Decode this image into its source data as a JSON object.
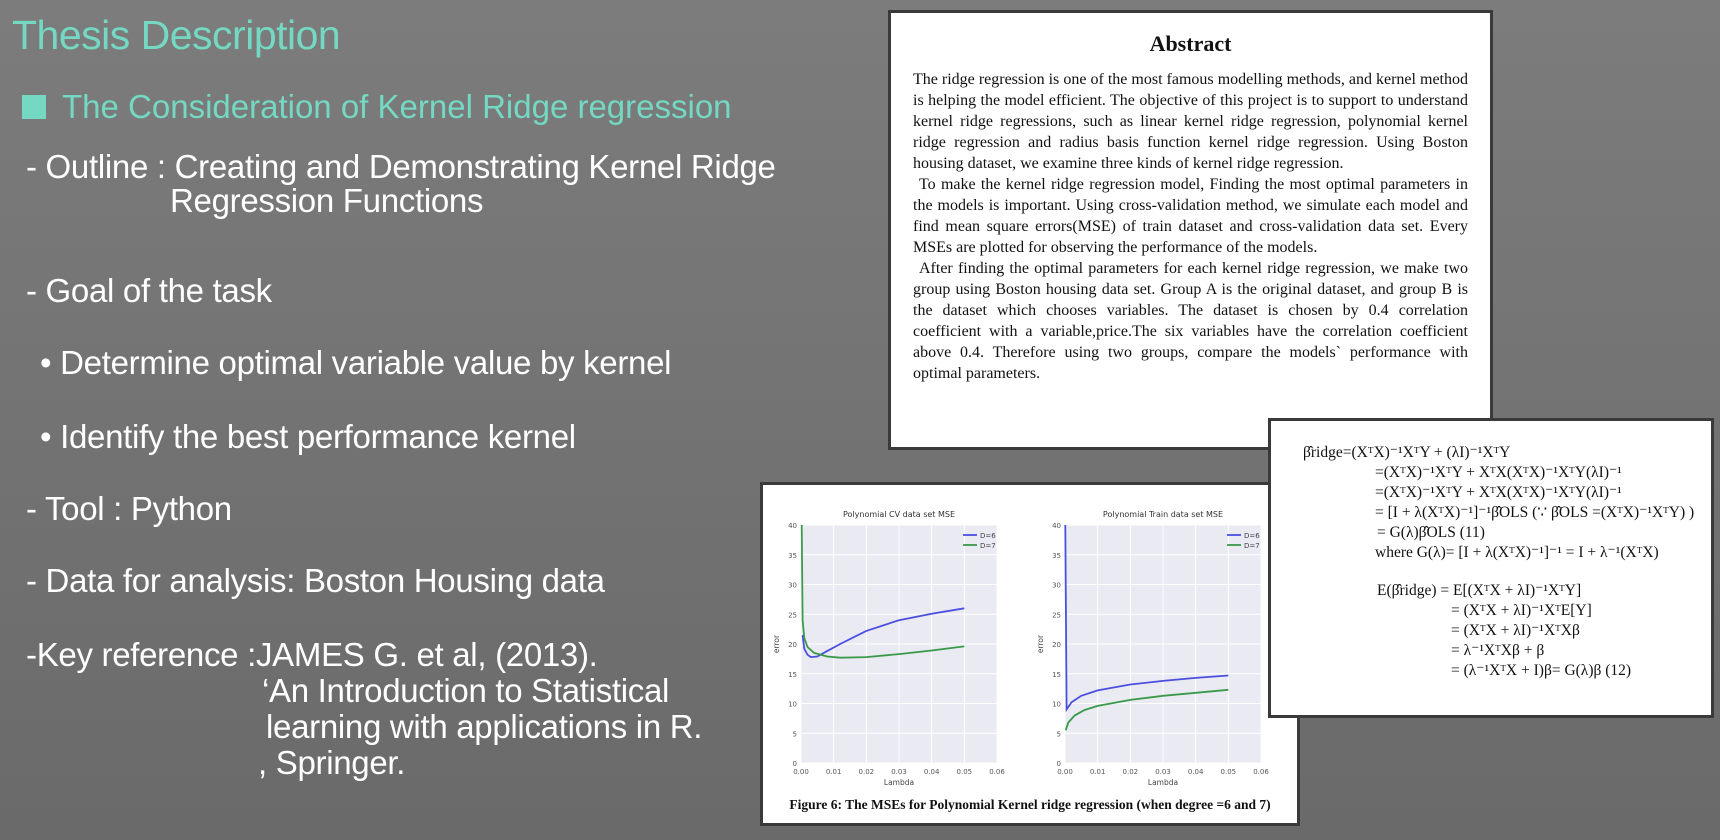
{
  "slide": {
    "title": "Thesis Description",
    "subtitle": "The Consideration of Kernel Ridge regression",
    "outline_label": "- Outline : Creating and Demonstrating Kernel Ridge",
    "outline_cont": "Regression Functions",
    "goal_label": "- Goal of the task",
    "goal_bullets": [
      "• Determine optimal variable value by kernel",
      "• Identify the best performance kernel"
    ],
    "tool": "- Tool : Python",
    "data": "- Data for analysis: Boston Housing data",
    "key_ref_1": "-Key reference :JAMES G. et al, (2013).",
    "key_ref_2": "‘An Introduction to Statistical",
    "key_ref_3": "learning with applications in R.",
    "key_ref_4": ", Springer."
  },
  "abstract": {
    "heading": "Abstract",
    "paragraphs": [
      "The ridge regression is one of the most famous modelling methods, and kernel method is helping the model efficient. The objective of this project is to support to understand kernel ridge regressions, such as linear kernel ridge regression, polynomial kernel ridge regression and radius basis function kernel ridge regression. Using Boston housing dataset, we examine three kinds of kernel ridge regression.",
      "To make the kernel ridge regression model, Finding the most optimal parameters in the models is important. Using cross-validation method, we simulate each model and find mean square errors(MSE) of train dataset and cross-validation data set. Every MSEs are plotted for observing the performance of the models.",
      "After finding the optimal parameters for each kernel ridge regression, we make two group using Boston housing data set. Group A is the original dataset, and group B is the dataset which chooses variables. The dataset is chosen by 0.4 correlation coefficient with a variable,price.The six variables have the correlation coefficient above 0.4. Therefore using two groups, compare the models` performance with optimal parameters."
    ]
  },
  "math": {
    "lines": [
      "β̂ridge=(XᵀX)⁻¹XᵀY + (λI)⁻¹XᵀY",
      "=(XᵀX)⁻¹XᵀY + XᵀX(XᵀX)⁻¹XᵀY(λI)⁻¹",
      "=(XᵀX)⁻¹XᵀY + XᵀX(XᵀX)⁻¹XᵀY(λI)⁻¹",
      "= [I + λ(XᵀX)⁻¹]⁻¹β̂OLS  (∵ β̂OLS =(XᵀX)⁻¹XᵀY) )",
      "= G(λ)β̂OLS                                        (11)",
      "where G(λ)= [I + λ(XᵀX)⁻¹]⁻¹ = I + λ⁻¹(XᵀX)",
      "E(β̂ridge) = E[(XᵀX + λI)⁻¹XᵀY]",
      "= (XᵀX + λI)⁻¹XᵀE[Y]",
      "= (XᵀX + λI)⁻¹XᵀXβ",
      "= λ⁻¹XᵀXβ + β",
      "= (λ⁻¹XᵀX + I)β= G(λ)β          (12)"
    ]
  },
  "figure": {
    "caption": "Figure 6: The MSEs for Polynomial Kernel ridge regression (when degree =6 and 7)",
    "colors": {
      "d6": "#4a4fe0",
      "d7": "#3a9a4a",
      "plot_bg": "#e9eaf2"
    },
    "chart_data": [
      {
        "type": "line",
        "title": "Polynomial CV data set MSE",
        "xlabel": "Lambda",
        "ylabel": "error",
        "xlim": [
          0,
          0.06
        ],
        "ylim": [
          0,
          40
        ],
        "xticks": [
          "0.00",
          "0.01",
          "0.02",
          "0.03",
          "0.04",
          "0.05",
          "0.06"
        ],
        "yticks": [
          "0",
          "5",
          "10",
          "15",
          "20",
          "25",
          "30",
          "35",
          "40"
        ],
        "legend": "top-right",
        "series": [
          {
            "name": "D=6",
            "x": [
              0.0005,
              0.001,
              0.002,
              0.003,
              0.005,
              0.008,
              0.012,
              0.02,
              0.03,
              0.04,
              0.05
            ],
            "y": [
              21.5,
              19.2,
              18.2,
              17.8,
              17.9,
              18.8,
              20.0,
              22.2,
              24.0,
              25.1,
              26.0
            ]
          },
          {
            "name": "D=7",
            "x": [
              0.0002,
              0.0005,
              0.001,
              0.002,
              0.004,
              0.008,
              0.012,
              0.02,
              0.03,
              0.04,
              0.05
            ],
            "y": [
              40,
              24.0,
              21.0,
              19.5,
              18.5,
              17.9,
              17.7,
              17.8,
              18.3,
              18.9,
              19.6
            ]
          }
        ]
      },
      {
        "type": "line",
        "title": "Polynomial Train data set MSE",
        "xlabel": "Lambda",
        "ylabel": "error",
        "xlim": [
          0,
          0.06
        ],
        "ylim": [
          0,
          40
        ],
        "xticks": [
          "0.00",
          "0.01",
          "0.02",
          "0.03",
          "0.04",
          "0.05",
          "0.06"
        ],
        "yticks": [
          "0",
          "5",
          "10",
          "15",
          "20",
          "25",
          "30",
          "35",
          "40"
        ],
        "legend": "top-right",
        "series": [
          {
            "name": "D=6",
            "x": [
              0.0001,
              0.0005,
              0.002,
              0.005,
              0.01,
              0.02,
              0.03,
              0.04,
              0.05
            ],
            "y": [
              40,
              9.0,
              10.2,
              11.3,
              12.2,
              13.2,
              13.8,
              14.3,
              14.7
            ]
          },
          {
            "name": "D=7",
            "x": [
              0.0002,
              0.001,
              0.003,
              0.006,
              0.01,
              0.02,
              0.03,
              0.04,
              0.05
            ],
            "y": [
              5.5,
              6.8,
              8.0,
              8.9,
              9.6,
              10.6,
              11.3,
              11.8,
              12.3
            ]
          }
        ]
      }
    ]
  }
}
